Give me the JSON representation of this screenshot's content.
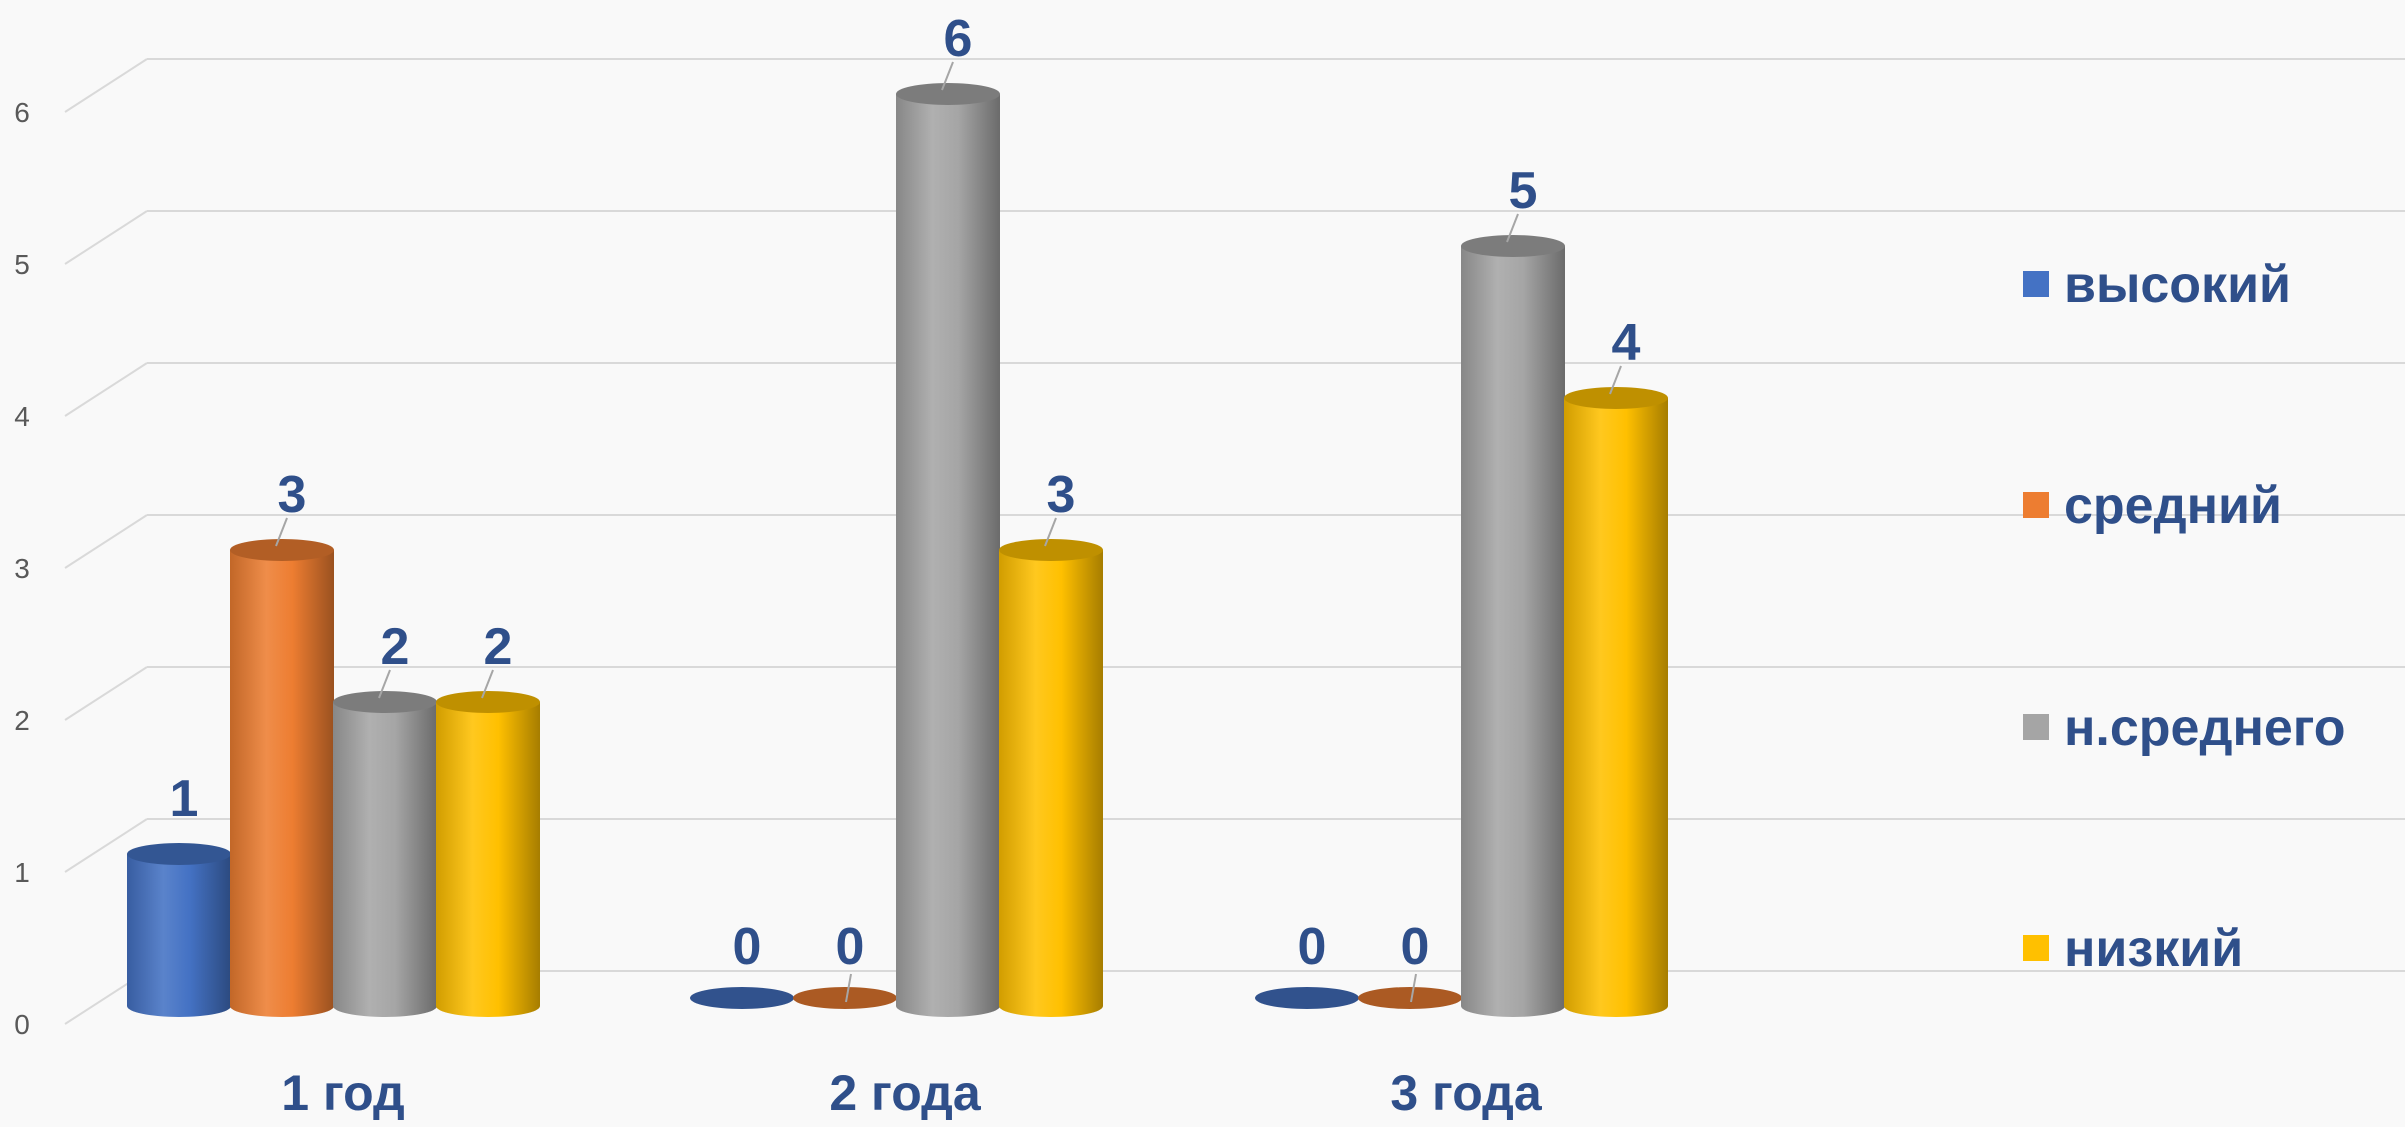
{
  "chart_data": {
    "type": "bar",
    "title": "",
    "xlabel": "",
    "ylabel": "",
    "categories": [
      "1 год",
      "2 года",
      "3 года"
    ],
    "series": [
      {
        "name": "высокий",
        "values": [
          1,
          0,
          0
        ],
        "color": "#4472c4"
      },
      {
        "name": "средний",
        "values": [
          3,
          0,
          0
        ],
        "color": "#ed7d31"
      },
      {
        "name": "н.среднего",
        "values": [
          2,
          6,
          5
        ],
        "color": "#a5a5a5"
      },
      {
        "name": "низкий",
        "values": [
          2,
          3,
          4
        ],
        "color": "#ffc000"
      }
    ],
    "ylim": [
      0,
      6
    ],
    "yticks": [
      "0",
      "1",
      "2",
      "3",
      "4",
      "5",
      "6"
    ],
    "grid": true,
    "legend_position": "right",
    "bar_style": "3d-cylinder"
  }
}
